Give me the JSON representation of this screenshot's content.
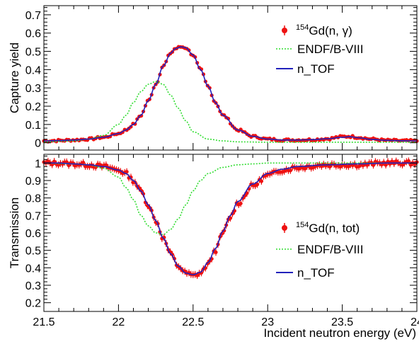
{
  "chart_data": [
    {
      "type": "scatter",
      "panel": "top",
      "ylabel": "Capture yield",
      "xlim": [
        21.5,
        24.0
      ],
      "ylim": [
        -0.04,
        0.75
      ],
      "yticks": [
        0,
        0.1,
        0.2,
        0.3,
        0.4,
        0.5,
        0.6,
        0.7
      ],
      "ytick_labels": [
        "0",
        "0.1",
        "0.2",
        "0.3",
        "0.4",
        "0.5",
        "0.6",
        "0.7"
      ],
      "legend_position": "top-right",
      "series": [
        {
          "name": "Gd(n, γ)",
          "style": "red points with error bars",
          "color": "#ee1111",
          "x": [
            21.5,
            21.6,
            21.7,
            21.8,
            21.9,
            22.0,
            22.05,
            22.1,
            22.15,
            22.2,
            22.25,
            22.3,
            22.35,
            22.38,
            22.42,
            22.45,
            22.5,
            22.55,
            22.6,
            22.65,
            22.7,
            22.8,
            22.9,
            23.0,
            23.1,
            23.2,
            23.3,
            23.4,
            23.5,
            23.55,
            23.6,
            23.7,
            23.8,
            23.9,
            24.0
          ],
          "y": [
            0.01,
            0.012,
            0.015,
            0.02,
            0.03,
            0.05,
            0.07,
            0.1,
            0.15,
            0.23,
            0.32,
            0.42,
            0.49,
            0.515,
            0.525,
            0.52,
            0.48,
            0.4,
            0.31,
            0.22,
            0.15,
            0.07,
            0.035,
            0.02,
            0.015,
            0.015,
            0.017,
            0.022,
            0.033,
            0.035,
            0.03,
            0.02,
            0.013,
            0.011,
            0.01
          ]
        },
        {
          "name": "ENDF/B-VIII",
          "style": "dashed line",
          "color": "#33dd33",
          "x": [
            21.5,
            21.7,
            21.8,
            21.9,
            22.0,
            22.05,
            22.1,
            22.15,
            22.2,
            22.25,
            22.3,
            22.35,
            22.4,
            22.45,
            22.5,
            22.6,
            22.7,
            22.8,
            23.0,
            23.5,
            24.0
          ],
          "y": [
            0.005,
            0.01,
            0.02,
            0.04,
            0.1,
            0.15,
            0.22,
            0.28,
            0.32,
            0.335,
            0.32,
            0.26,
            0.19,
            0.12,
            0.06,
            0.02,
            0.01,
            0.005,
            0.003,
            0.003,
            0.003
          ]
        },
        {
          "name": "n_TOF",
          "style": "solid line",
          "color": "#2222bb",
          "x": [
            21.5,
            21.6,
            21.7,
            21.8,
            21.9,
            22.0,
            22.05,
            22.1,
            22.15,
            22.2,
            22.25,
            22.3,
            22.35,
            22.38,
            22.42,
            22.45,
            22.5,
            22.55,
            22.6,
            22.65,
            22.7,
            22.8,
            22.9,
            23.0,
            23.1,
            23.2,
            23.3,
            23.4,
            23.5,
            23.55,
            23.6,
            23.7,
            23.8,
            23.9,
            24.0
          ],
          "y": [
            0.01,
            0.012,
            0.015,
            0.02,
            0.03,
            0.05,
            0.07,
            0.1,
            0.15,
            0.23,
            0.32,
            0.42,
            0.49,
            0.515,
            0.525,
            0.52,
            0.48,
            0.4,
            0.31,
            0.22,
            0.15,
            0.07,
            0.035,
            0.02,
            0.015,
            0.015,
            0.017,
            0.022,
            0.03,
            0.033,
            0.028,
            0.018,
            0.013,
            0.011,
            0.01
          ]
        }
      ]
    },
    {
      "type": "scatter",
      "panel": "bottom",
      "xlabel": "Incident neutron energy (eV)",
      "ylabel": "Transmission",
      "xlim": [
        21.5,
        24.0
      ],
      "ylim": [
        0.15,
        1.05
      ],
      "xticks": [
        21.5,
        22,
        22.5,
        23,
        23.5,
        24
      ],
      "xtick_labels": [
        "21.5",
        "22",
        "22.5",
        "23",
        "23.5",
        "24"
      ],
      "yticks": [
        0.2,
        0.3,
        0.4,
        0.5,
        0.6,
        0.7,
        0.8,
        0.9,
        1
      ],
      "ytick_labels": [
        "0.2",
        "0.3",
        "0.4",
        "0.5",
        "0.6",
        "0.7",
        "0.8",
        "0.9",
        "1"
      ],
      "legend_position": "lower-right",
      "series": [
        {
          "name": "Gd(n, tot)",
          "style": "red points with error bars",
          "color": "#ee1111",
          "x": [
            21.5,
            21.6,
            21.7,
            21.8,
            21.9,
            22.0,
            22.05,
            22.1,
            22.15,
            22.2,
            22.25,
            22.3,
            22.35,
            22.4,
            22.45,
            22.5,
            22.55,
            22.6,
            22.65,
            22.7,
            22.75,
            22.8,
            22.9,
            23.0,
            23.1,
            23.2,
            23.4,
            23.6,
            23.8,
            24.0
          ],
          "y": [
            1.0,
            1.0,
            0.995,
            0.99,
            0.98,
            0.96,
            0.94,
            0.9,
            0.84,
            0.76,
            0.67,
            0.57,
            0.48,
            0.41,
            0.37,
            0.355,
            0.37,
            0.42,
            0.5,
            0.6,
            0.69,
            0.77,
            0.87,
            0.93,
            0.96,
            0.975,
            0.99,
            0.99,
            1.0,
            1.0
          ]
        },
        {
          "name": "ENDF/B-VIII",
          "style": "dashed line",
          "color": "#33dd33",
          "x": [
            21.5,
            21.7,
            21.8,
            21.9,
            22.0,
            22.05,
            22.1,
            22.15,
            22.2,
            22.25,
            22.3,
            22.35,
            22.4,
            22.45,
            22.5,
            22.55,
            22.6,
            22.7,
            22.8,
            22.9,
            23.0,
            23.5,
            24.0
          ],
          "y": [
            1.0,
            0.995,
            0.99,
            0.97,
            0.92,
            0.86,
            0.79,
            0.7,
            0.64,
            0.6,
            0.59,
            0.62,
            0.68,
            0.76,
            0.84,
            0.9,
            0.94,
            0.975,
            0.99,
            0.995,
            1.0,
            1.0,
            1.0
          ]
        },
        {
          "name": "n_TOF",
          "style": "solid line",
          "color": "#2222bb",
          "x": [
            21.5,
            21.6,
            21.7,
            21.8,
            21.9,
            22.0,
            22.05,
            22.1,
            22.15,
            22.2,
            22.25,
            22.3,
            22.35,
            22.4,
            22.45,
            22.5,
            22.55,
            22.6,
            22.65,
            22.7,
            22.75,
            22.8,
            22.9,
            23.0,
            23.1,
            23.2,
            23.4,
            23.6,
            23.8,
            24.0
          ],
          "y": [
            1.0,
            1.0,
            0.995,
            0.99,
            0.98,
            0.96,
            0.94,
            0.9,
            0.84,
            0.76,
            0.67,
            0.57,
            0.48,
            0.41,
            0.37,
            0.36,
            0.375,
            0.43,
            0.51,
            0.61,
            0.7,
            0.78,
            0.88,
            0.94,
            0.965,
            0.98,
            0.99,
            0.995,
            1.0,
            1.0
          ]
        }
      ]
    }
  ],
  "legend": {
    "top": {
      "sup": "154",
      "label1": "Gd(n, γ)",
      "label2": "ENDF/B-VIII",
      "label3": "n_TOF"
    },
    "bottom": {
      "sup": "154",
      "label1": "Gd(n, tot)",
      "label2": "ENDF/B-VIII",
      "label3": "n_TOF"
    }
  }
}
